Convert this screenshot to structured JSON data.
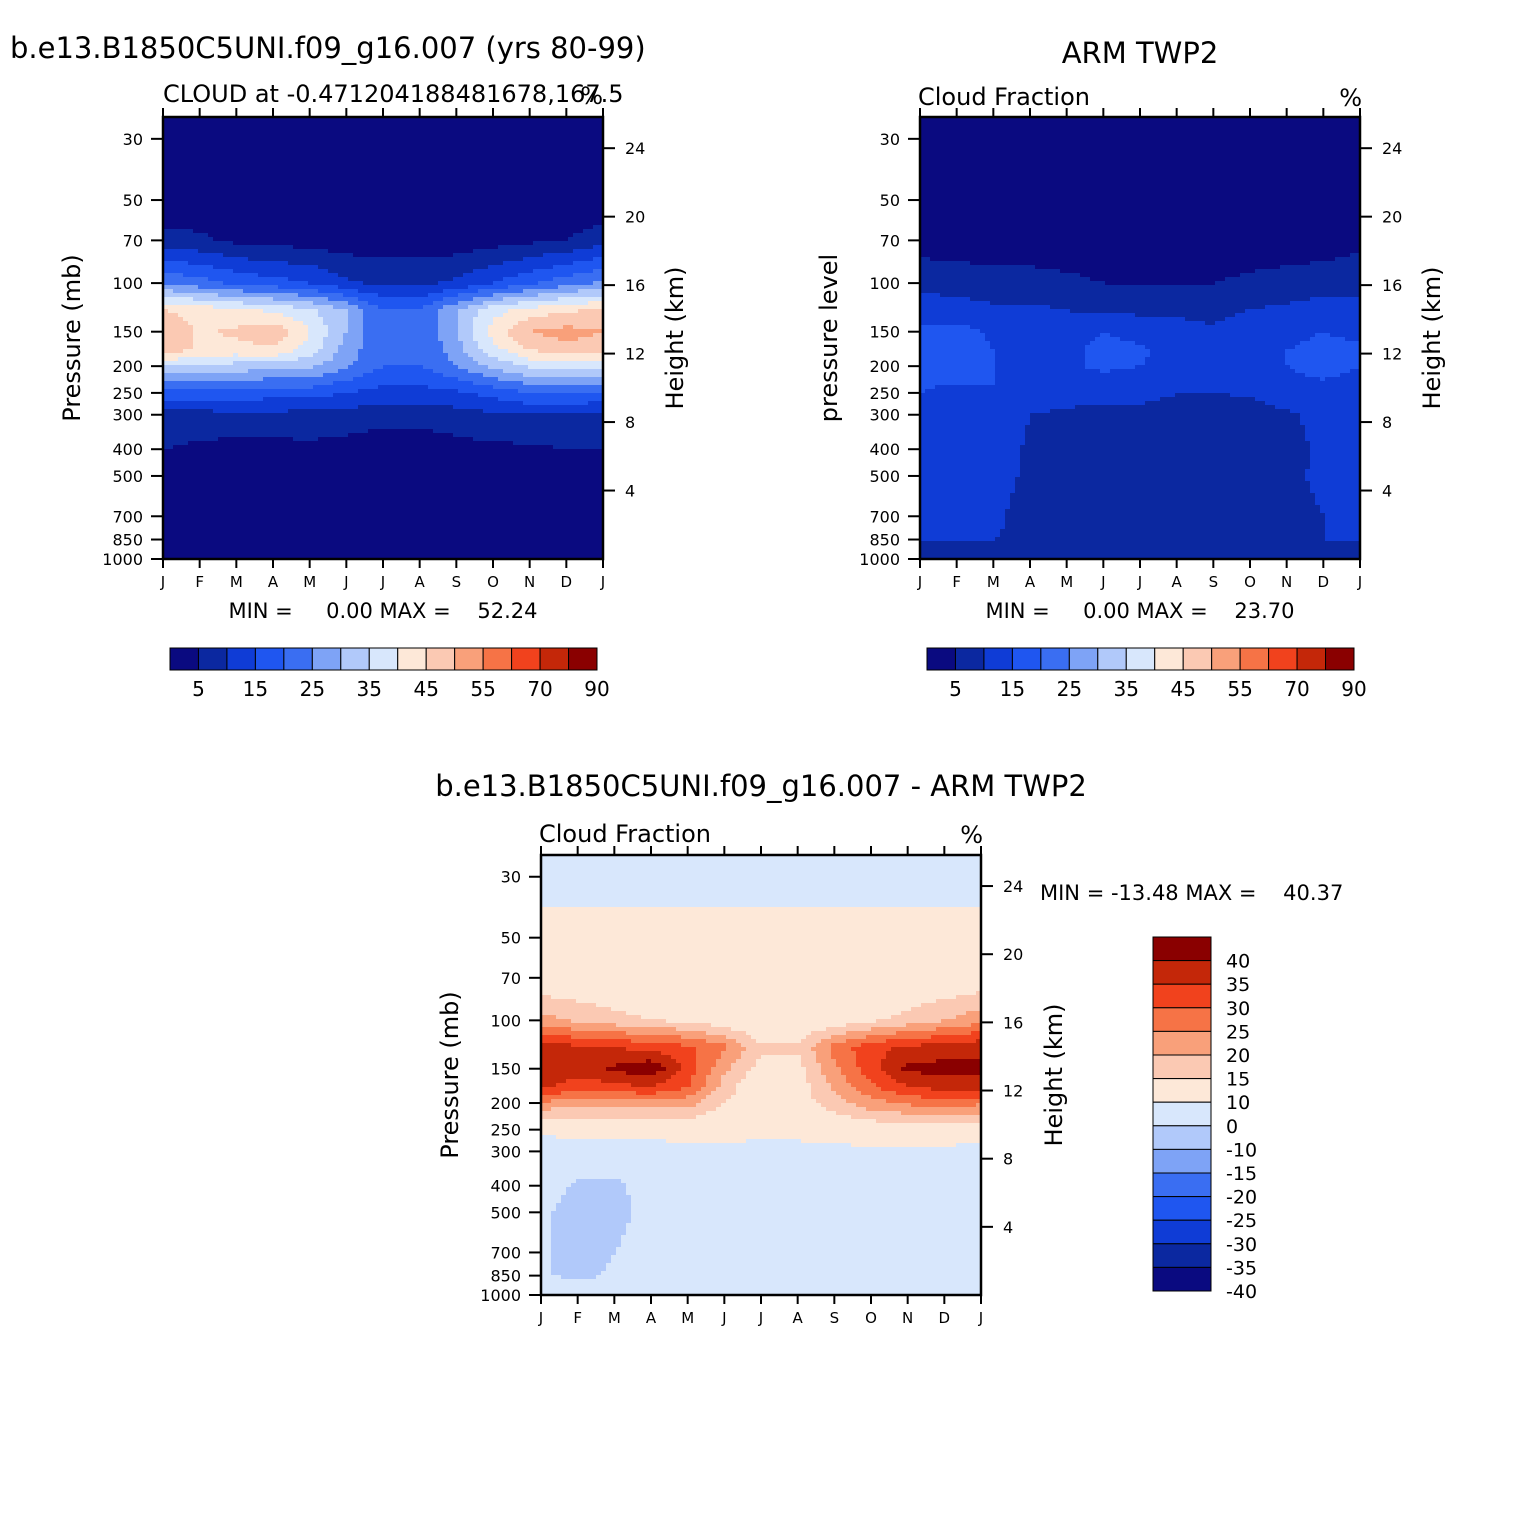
{
  "figure": {
    "panel1": {
      "title": "b.e13.B1850C5UNI.f09_g16.007 (yrs 80-99)",
      "subtitle": "CLOUD at -0.471204188481678,167.5",
      "units": "%",
      "ylabel": "Pressure (mb)",
      "right_label": "Height (km)",
      "stats": "MIN =     0.00 MAX =    52.24"
    },
    "panel2": {
      "title": "ARM TWP2",
      "subtitle": "Cloud Fraction",
      "units": "%",
      "ylabel": "pressure level",
      "right_label": "Height (km)",
      "stats": "MIN =     0.00 MAX =    23.70"
    },
    "panel3": {
      "title": "b.e13.B1850C5UNI.f09_g16.007 - ARM TWP2",
      "subtitle": "Cloud Fraction",
      "units": "%",
      "ylabel": "Pressure (mb)",
      "right_label": "Height (km)",
      "stats": "MIN = -13.48 MAX =    40.37"
    }
  },
  "chart_data": [
    {
      "type": "heatmap",
      "name": "model",
      "title": "b.e13.B1850C5UNI.f09_g16.007 (yrs 80-99)",
      "subtitle": "CLOUD at -0.471204188481678,167.5",
      "units": "%",
      "x_ticks": [
        "J",
        "F",
        "M",
        "A",
        "M",
        "J",
        "J",
        "A",
        "S",
        "O",
        "N",
        "D",
        "J"
      ],
      "y_ticks": [
        30,
        50,
        70,
        100,
        150,
        200,
        250,
        300,
        400,
        500,
        700,
        850,
        1000
      ],
      "y_range": [
        1000,
        25
      ],
      "y_scale": "log",
      "height_ticks_km": [
        24,
        20,
        16,
        12,
        8,
        4
      ],
      "xlabel": "",
      "ylabel": "Pressure (mb)",
      "y2label": "Height (km)",
      "min": 0.0,
      "max": 52.24,
      "levels": [
        5,
        10,
        15,
        20,
        25,
        30,
        35,
        40,
        45,
        50,
        55,
        60,
        70,
        80,
        90
      ],
      "colorbar_labels": [
        "5",
        "15",
        "25",
        "35",
        "45",
        "55",
        "70",
        "90"
      ],
      "colors": [
        "#0a0a80",
        "#0b28a0",
        "#0f3cd6",
        "#1f56f0",
        "#3a6ef2",
        "#7ea3f6",
        "#b1c9fa",
        "#d8e7fc",
        "#fde8d8",
        "#fbc9b3",
        "#f9a07a",
        "#f67346",
        "#f1421d",
        "#c42709",
        "#8a0000"
      ],
      "x": [
        "J",
        "F",
        "M",
        "A",
        "M",
        "J",
        "J",
        "A",
        "S",
        "O",
        "N",
        "D",
        "J"
      ],
      "y": [
        30,
        50,
        70,
        100,
        125,
        150,
        175,
        200,
        250,
        300,
        400,
        500,
        700,
        850,
        1000
      ],
      "z": [
        [
          0,
          0,
          0,
          0,
          0,
          0,
          0,
          0,
          0,
          0,
          0,
          0,
          0
        ],
        [
          1,
          1,
          1,
          1,
          1,
          1,
          0,
          0,
          0,
          0,
          1,
          1,
          1
        ],
        [
          7,
          6,
          4,
          3,
          3,
          2,
          2,
          2,
          2,
          3,
          4,
          5,
          8
        ],
        [
          25,
          22,
          19,
          17,
          15,
          11,
          9,
          9,
          11,
          15,
          19,
          23,
          26
        ],
        [
          45,
          43,
          41,
          39,
          36,
          30,
          20,
          20,
          30,
          38,
          42,
          44,
          46
        ],
        [
          50,
          44,
          46,
          49,
          40,
          30,
          20,
          20,
          30,
          42,
          50,
          52,
          50
        ],
        [
          48,
          44,
          43,
          44,
          38,
          28,
          20,
          20,
          28,
          38,
          45,
          48,
          48
        ],
        [
          35,
          34,
          33,
          32,
          31,
          26,
          20,
          20,
          25,
          31,
          36,
          38,
          36
        ],
        [
          18,
          18,
          18,
          17,
          17,
          15,
          13,
          13,
          14,
          17,
          20,
          21,
          19
        ],
        [
          8,
          8,
          9,
          9,
          8,
          8,
          7,
          7,
          8,
          9,
          10,
          10,
          9
        ],
        [
          5,
          4,
          3,
          3,
          4,
          3,
          2,
          2,
          3,
          4,
          4,
          5,
          5
        ],
        [
          3,
          2,
          2,
          2,
          2,
          2,
          2,
          2,
          2,
          2,
          2,
          2,
          3
        ],
        [
          2,
          2,
          2,
          2,
          2,
          2,
          2,
          2,
          2,
          2,
          2,
          2,
          2
        ],
        [
          1,
          1,
          1,
          1,
          1,
          1,
          1,
          1,
          1,
          1,
          1,
          1,
          1
        ],
        [
          1,
          1,
          1,
          1,
          1,
          1,
          1,
          1,
          1,
          1,
          1,
          1,
          1
        ]
      ]
    },
    {
      "type": "heatmap",
      "name": "obs",
      "title": "ARM TWP2",
      "subtitle": "Cloud Fraction",
      "units": "%",
      "x_ticks": [
        "J",
        "F",
        "M",
        "A",
        "M",
        "J",
        "J",
        "A",
        "S",
        "O",
        "N",
        "D",
        "J"
      ],
      "y_ticks": [
        30,
        50,
        70,
        100,
        150,
        200,
        250,
        300,
        400,
        500,
        700,
        850,
        1000
      ],
      "y_range": [
        1000,
        25
      ],
      "y_scale": "log",
      "height_ticks_km": [
        24,
        20,
        16,
        12,
        8,
        4
      ],
      "xlabel": "",
      "ylabel": "pressure level",
      "y2label": "Height (km)",
      "min": 0.0,
      "max": 23.7,
      "levels": [
        5,
        10,
        15,
        20,
        25,
        30,
        35,
        40,
        45,
        50,
        55,
        60,
        70,
        80,
        90
      ],
      "colorbar_labels": [
        "5",
        "15",
        "25",
        "35",
        "45",
        "55",
        "70",
        "90"
      ],
      "colors": [
        "#0a0a80",
        "#0b28a0",
        "#0f3cd6",
        "#1f56f0",
        "#3a6ef2",
        "#7ea3f6",
        "#b1c9fa",
        "#d8e7fc",
        "#fde8d8",
        "#fbc9b3",
        "#f9a07a",
        "#f67346",
        "#f1421d",
        "#c42709",
        "#8a0000"
      ],
      "x": [
        "J",
        "F",
        "M",
        "A",
        "M",
        "J",
        "J",
        "A",
        "S",
        "O",
        "N",
        "D",
        "J"
      ],
      "y": [
        30,
        50,
        70,
        100,
        125,
        150,
        175,
        200,
        250,
        300,
        400,
        500,
        700,
        850,
        1000
      ],
      "z": [
        [
          0,
          0,
          0,
          0,
          0,
          0,
          0,
          0,
          0,
          0,
          0,
          0,
          0
        ],
        [
          0,
          0,
          0,
          0,
          0,
          0,
          0,
          0,
          0,
          0,
          0,
          0,
          0
        ],
        [
          3,
          2,
          2,
          2,
          2,
          2,
          2,
          2,
          2,
          2,
          2,
          2,
          4
        ],
        [
          8,
          8,
          7,
          7,
          6,
          5,
          5,
          5,
          5,
          6,
          7,
          8,
          8
        ],
        [
          13,
          12,
          11,
          11,
          10,
          9,
          9,
          9,
          8,
          10,
          11,
          12,
          12
        ],
        [
          16,
          17,
          14,
          13,
          12,
          15,
          13,
          12,
          11,
          14,
          14,
          15,
          14
        ],
        [
          17,
          18,
          15,
          14,
          13,
          17,
          16,
          13,
          12,
          14,
          15,
          16,
          16
        ],
        [
          16,
          17,
          15,
          14,
          14,
          16,
          15,
          13,
          12,
          13,
          15,
          16,
          15
        ],
        [
          15,
          14,
          15,
          14,
          12,
          11,
          11,
          10,
          10,
          11,
          14,
          14,
          14
        ],
        [
          14,
          13,
          15,
          10,
          9,
          9,
          9,
          9,
          6,
          6,
          9,
          12,
          13
        ],
        [
          12,
          12,
          13,
          9,
          8,
          9,
          8,
          8,
          5,
          6,
          8,
          11,
          12
        ],
        [
          12,
          11,
          12,
          9,
          8,
          9,
          8,
          8,
          6,
          6,
          9,
          11,
          12
        ],
        [
          11,
          11,
          11,
          8,
          5,
          8,
          6,
          8,
          6,
          6,
          8,
          10,
          11
        ],
        [
          10,
          10,
          10,
          9,
          9,
          9,
          9,
          9,
          9,
          9,
          9,
          10,
          10
        ],
        [
          5,
          5,
          5,
          5,
          5,
          5,
          5,
          5,
          5,
          5,
          5,
          5,
          5
        ]
      ]
    },
    {
      "type": "heatmap",
      "name": "difference",
      "title": "b.e13.B1850C5UNI.f09_g16.007 - ARM TWP2",
      "subtitle": "Cloud Fraction",
      "units": "%",
      "x_ticks": [
        "J",
        "F",
        "M",
        "A",
        "M",
        "J",
        "J",
        "A",
        "S",
        "O",
        "N",
        "D",
        "J"
      ],
      "y_ticks": [
        30,
        50,
        70,
        100,
        150,
        200,
        250,
        300,
        400,
        500,
        700,
        850,
        1000
      ],
      "y_range": [
        1000,
        25
      ],
      "y_scale": "log",
      "height_ticks_km": [
        24,
        20,
        16,
        12,
        8,
        4
      ],
      "xlabel": "",
      "ylabel": "Pressure (mb)",
      "y2label": "Height (km)",
      "min": -13.48,
      "max": 40.37,
      "levels": [
        -40,
        -35,
        -30,
        -25,
        -20,
        -15,
        -10,
        0,
        10,
        15,
        20,
        25,
        30,
        35,
        40
      ],
      "colorbar_labels": [
        "40",
        "35",
        "30",
        "25",
        "20",
        "15",
        "10",
        "0",
        "-10",
        "-15",
        "-20",
        "-25",
        "-30",
        "-35",
        "-40"
      ],
      "colors": [
        "#0a0a80",
        "#0b28a0",
        "#0f3cd6",
        "#1f56f0",
        "#3a6ef2",
        "#7ea3f6",
        "#b1c9fa",
        "#d8e7fc",
        "#fde8d8",
        "#fbc9b3",
        "#f9a07a",
        "#f67346",
        "#f1421d",
        "#c42709",
        "#8a0000"
      ],
      "x": [
        "J",
        "F",
        "M",
        "A",
        "M",
        "J",
        "J",
        "A",
        "S",
        "O",
        "N",
        "D",
        "J"
      ],
      "y": [
        30,
        50,
        70,
        100,
        125,
        150,
        175,
        200,
        250,
        300,
        400,
        500,
        700,
        850,
        1000
      ],
      "z": [
        [
          -2,
          -2,
          -2,
          -2,
          -2,
          -2,
          -2,
          -2,
          -2,
          -2,
          -2,
          -2,
          -2
        ],
        [
          2,
          2,
          2,
          2,
          2,
          2,
          2,
          2,
          2,
          2,
          2,
          2,
          2
        ],
        [
          5,
          5,
          4,
          4,
          4,
          3,
          3,
          3,
          3,
          4,
          4,
          5,
          6
        ],
        [
          17,
          14,
          12,
          10,
          9,
          6,
          4,
          4,
          6,
          9,
          12,
          15,
          18
        ],
        [
          32,
          31,
          30,
          28,
          26,
          21,
          11,
          11,
          22,
          28,
          31,
          32,
          34
        ],
        [
          34,
          33,
          36,
          39,
          28,
          16,
          8,
          8,
          19,
          28,
          36,
          37,
          36
        ],
        [
          31,
          27,
          28,
          30,
          25,
          13,
          4,
          7,
          16,
          24,
          30,
          32,
          32
        ],
        [
          19,
          17,
          18,
          18,
          17,
          10,
          6,
          7,
          13,
          18,
          21,
          22,
          21
        ],
        [
          3,
          4,
          3,
          3,
          5,
          4,
          2,
          3,
          4,
          6,
          6,
          7,
          5
        ],
        [
          -8,
          -5,
          -4,
          -4,
          -3,
          -2,
          -3,
          -3,
          -2,
          -2,
          -2,
          -2,
          -4
        ],
        [
          -7,
          -11,
          -12,
          -6,
          -4,
          -6,
          -6,
          -6,
          -3,
          -2,
          -4,
          -6,
          -7
        ],
        [
          -9,
          -12,
          -13,
          -7,
          -6,
          -7,
          -6,
          -6,
          -4,
          -4,
          -7,
          -9,
          -9
        ],
        [
          -9,
          -12,
          -10,
          -6,
          -3,
          -6,
          -5,
          -6,
          -5,
          -4,
          -6,
          -8,
          -9
        ],
        [
          -9,
          -12,
          -9,
          -8,
          -8,
          -8,
          -8,
          -8,
          -8,
          -8,
          -8,
          -9,
          -9
        ],
        [
          -4,
          -4,
          -4,
          -4,
          -4,
          -4,
          -4,
          -4,
          -4,
          -4,
          -4,
          -4,
          -4
        ]
      ]
    }
  ]
}
